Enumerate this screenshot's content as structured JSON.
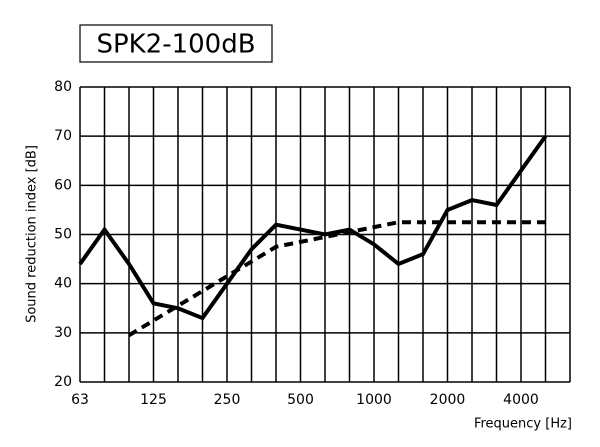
{
  "chart_data": {
    "type": "line",
    "title": "SPK2-100dB",
    "y_label": "Sound reduction index [dB]",
    "x_label": "Frequency [Hz]",
    "categories": [
      "63",
      null,
      null,
      "125",
      null,
      null,
      "250",
      null,
      null,
      "500",
      null,
      null,
      "1000",
      null,
      null,
      "2000",
      null,
      null,
      "4000",
      null,
      null
    ],
    "series": [
      {
        "color": "#000000",
        "dashed": false,
        "values": [
          44,
          51,
          44,
          36,
          35,
          33,
          40,
          47,
          52,
          51,
          50,
          51,
          48,
          44,
          46,
          55,
          57,
          56,
          63,
          70,
          null
        ]
      },
      {
        "color": "#000000",
        "dashed": true,
        "values": [
          null,
          null,
          29.5,
          32.5,
          35.5,
          38.5,
          41.5,
          44.5,
          47.5,
          48.5,
          49.5,
          50.5,
          51.5,
          52.5,
          52.5,
          52.5,
          52.5,
          52.5,
          52.5,
          52.5,
          null
        ]
      }
    ],
    "ylim": [
      20,
      80
    ],
    "yticks": [
      20,
      30,
      40,
      50,
      60,
      70,
      80
    ],
    "grid": true
  }
}
